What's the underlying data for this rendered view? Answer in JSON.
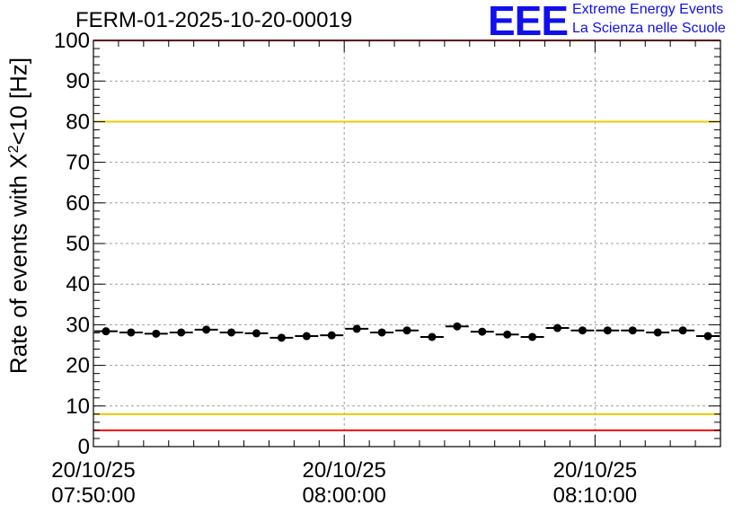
{
  "chart_data": {
    "type": "scatter",
    "title": "FERM-01-2025-10-20-00019",
    "ylabel_main": "Rate of events with X",
    "ylabel_sup": "2",
    "ylabel_tail": "<10 [Hz]",
    "xlabel": "",
    "ylim": [
      0,
      100
    ],
    "yticks": [
      "0",
      "10",
      "20",
      "30",
      "40",
      "50",
      "60",
      "70",
      "80",
      "90",
      "100"
    ],
    "xlim_minutes": [
      0,
      25
    ],
    "xticks": [
      {
        "at_minutes": 0,
        "date": "20/10/25",
        "time": "07:50:00"
      },
      {
        "at_minutes": 10,
        "date": "20/10/25",
        "time": "08:00:00"
      },
      {
        "at_minutes": 20,
        "date": "20/10/25",
        "time": "08:10:00"
      }
    ],
    "grid": true,
    "bin_width_minutes": 1,
    "points": [
      {
        "x": 0.5,
        "y": 28.4
      },
      {
        "x": 1.5,
        "y": 28.1
      },
      {
        "x": 2.5,
        "y": 27.8
      },
      {
        "x": 3.5,
        "y": 28.1
      },
      {
        "x": 4.5,
        "y": 28.8
      },
      {
        "x": 5.5,
        "y": 28.1
      },
      {
        "x": 6.5,
        "y": 27.9
      },
      {
        "x": 7.5,
        "y": 26.8
      },
      {
        "x": 8.5,
        "y": 27.2
      },
      {
        "x": 9.5,
        "y": 27.4
      },
      {
        "x": 10.5,
        "y": 29.0
      },
      {
        "x": 11.5,
        "y": 28.1
      },
      {
        "x": 12.5,
        "y": 28.6
      },
      {
        "x": 13.5,
        "y": 27.0
      },
      {
        "x": 14.5,
        "y": 29.6
      },
      {
        "x": 15.5,
        "y": 28.3
      },
      {
        "x": 16.5,
        "y": 27.6
      },
      {
        "x": 17.5,
        "y": 27.0
      },
      {
        "x": 18.5,
        "y": 29.2
      },
      {
        "x": 19.5,
        "y": 28.6
      },
      {
        "x": 20.5,
        "y": 28.6
      },
      {
        "x": 21.5,
        "y": 28.6
      },
      {
        "x": 22.5,
        "y": 28.1
      },
      {
        "x": 23.5,
        "y": 28.6
      },
      {
        "x": 24.5,
        "y": 27.2
      }
    ],
    "reference_lines": [
      {
        "y": 100,
        "color": "#ee1111",
        "name": "upper-red-limit"
      },
      {
        "y": 80,
        "color": "#f0c800",
        "name": "upper-yellow-limit"
      },
      {
        "y": 8,
        "color": "#f0c800",
        "name": "lower-yellow-limit"
      },
      {
        "y": 4,
        "color": "#ee1111",
        "name": "lower-red-limit"
      }
    ]
  },
  "logo": {
    "mark": "EEE",
    "line1": "Extreme Energy Events",
    "line2": "La Scienza nelle Scuole",
    "color": "#1010ee"
  }
}
